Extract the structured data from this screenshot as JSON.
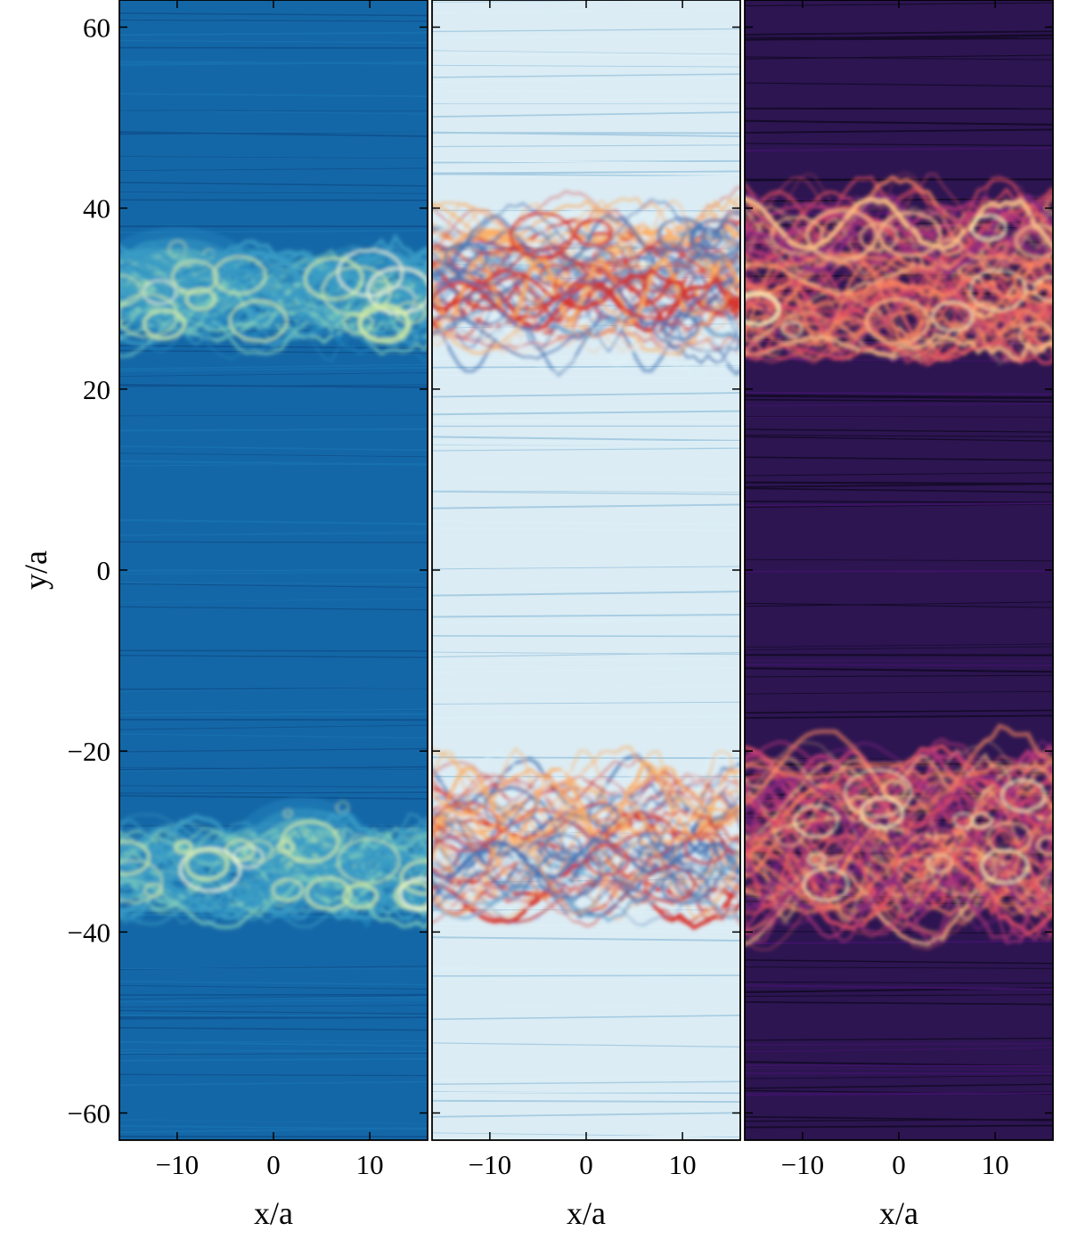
{
  "chart_data": {
    "type": "heatmap",
    "layout": "three side-by-side field maps sharing the y axis",
    "ylabel": "y/a",
    "ylim": [
      -63,
      63
    ],
    "yticks": [
      -60,
      -40,
      -20,
      0,
      20,
      40,
      60
    ],
    "yticklabels": [
      "−60",
      "−40",
      "−20",
      "0",
      "20",
      "40",
      "60"
    ],
    "colorbar": "none shown",
    "panels": [
      {
        "xlabel": "x/a",
        "xlim": [
          -16,
          16
        ],
        "xticks": [
          -10,
          0,
          10
        ],
        "xticklabels": [
          "−10",
          "0",
          "10"
        ],
        "colormap": "YlGnBu_r",
        "colormap_stops": [
          "#08306b",
          "#0b5ea8",
          "#1f83bd",
          "#3a9cc5",
          "#7fcdbb",
          "#d9f0a3",
          "#ffffd9"
        ],
        "background": "#1467a6",
        "features": [
          {
            "kind": "bright-vortex",
            "x": -10,
            "y": 32,
            "rx": 6,
            "ry": 4,
            "level": 0.95
          },
          {
            "kind": "bright-vortex",
            "x": 3,
            "y": -31,
            "rx": 5,
            "ry": 4,
            "level": 0.9
          },
          {
            "kind": "filament-band",
            "y": 30,
            "width": 8,
            "level": 0.55
          },
          {
            "kind": "filament-band",
            "y": -33,
            "width": 8,
            "level": 0.55
          }
        ]
      },
      {
        "xlabel": "x/a",
        "xlim": [
          -16,
          16
        ],
        "xticks": [
          -10,
          0,
          10
        ],
        "xticklabels": [
          "−10",
          "0",
          "10"
        ],
        "colormap": "RdYlBu_r",
        "colormap_stops": [
          "#313695",
          "#4575b4",
          "#74add1",
          "#e0f3f8",
          "#ffffbf",
          "#fdae61",
          "#d73027",
          "#a50026"
        ],
        "background": "#dbecf4",
        "features": [
          {
            "kind": "shear-layer",
            "y": 32,
            "width": 14,
            "level": 0.85
          },
          {
            "kind": "shear-layer",
            "y": -30,
            "width": 14,
            "level": 0.85
          }
        ]
      },
      {
        "xlabel": "x/a",
        "xlim": [
          -16,
          16
        ],
        "xticks": [
          -10,
          0,
          10
        ],
        "xticklabels": [
          "−10",
          "0",
          "10"
        ],
        "colormap": "magma",
        "colormap_stops": [
          "#000004",
          "#1c1044",
          "#4f127b",
          "#812581",
          "#b5367a",
          "#e55064",
          "#fb8761",
          "#fec287",
          "#fcfdbf"
        ],
        "background": "#2c1551",
        "features": [
          {
            "kind": "shear-layer",
            "y": 32,
            "width": 16,
            "level": 0.9
          },
          {
            "kind": "shear-layer",
            "y": -30,
            "width": 16,
            "level": 0.9
          }
        ]
      }
    ]
  }
}
